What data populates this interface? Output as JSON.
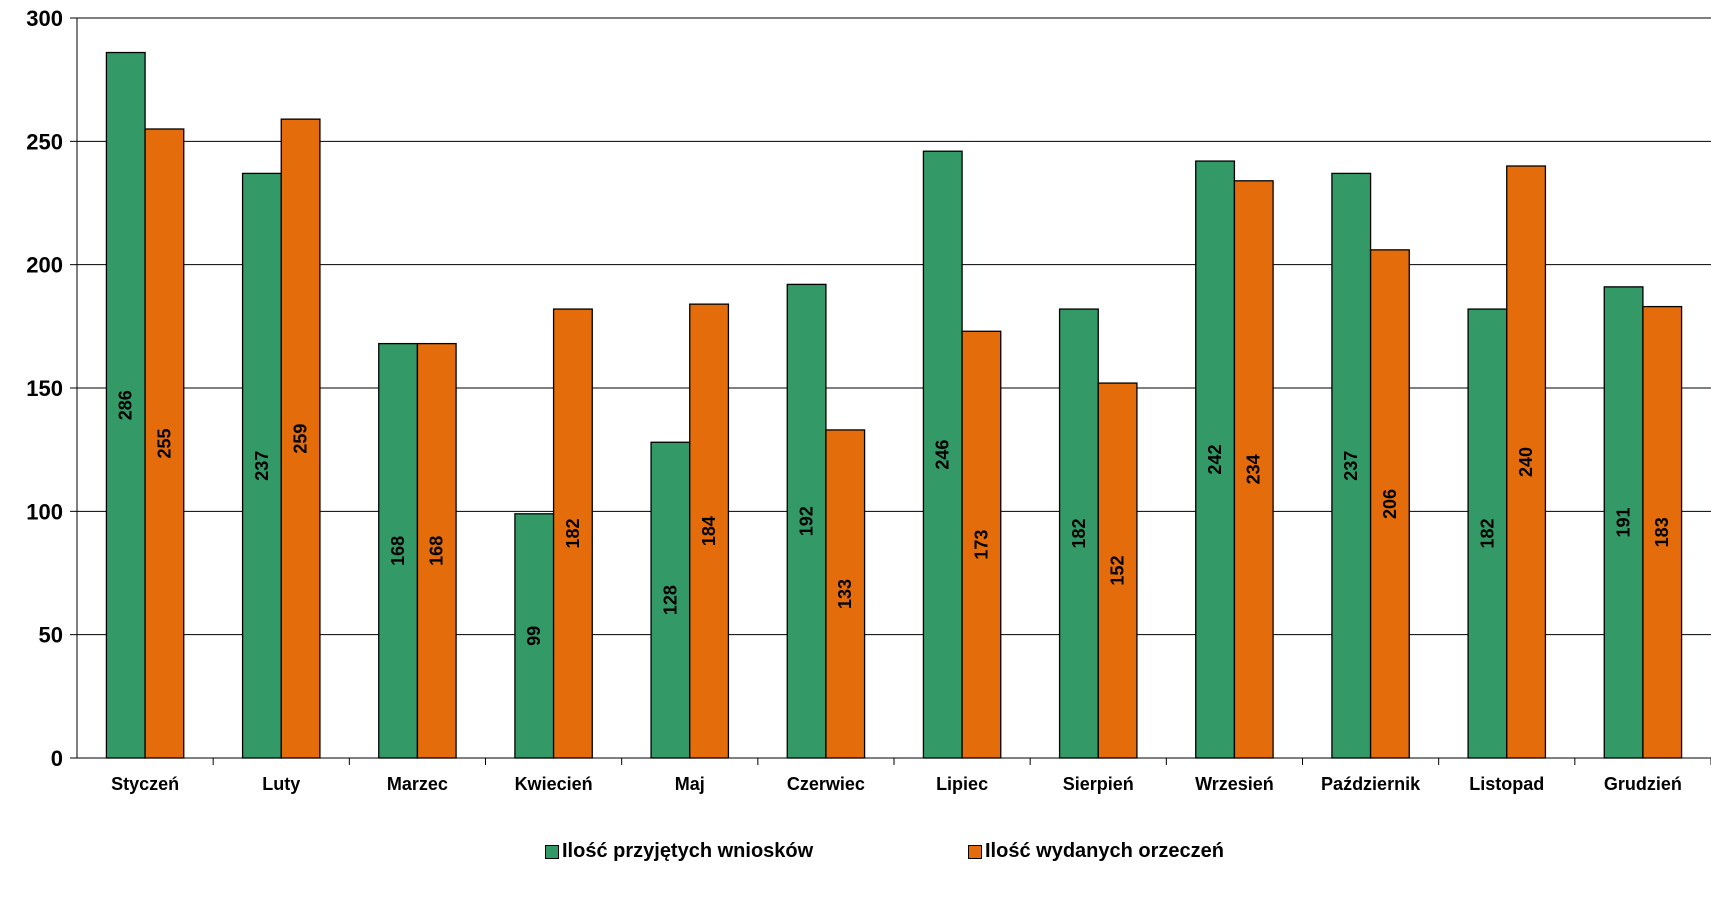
{
  "chart_data": {
    "type": "bar",
    "categories": [
      "Styczeń",
      "Luty",
      "Marzec",
      "Kwiecień",
      "Maj",
      "Czerwiec",
      "Lipiec",
      "Sierpień",
      "Wrzesień",
      "Październik",
      "Listopad",
      "Grudzień"
    ],
    "series": [
      {
        "name": "Ilość przyjętych wniosków",
        "color": "#339966",
        "values": [
          286,
          237,
          168,
          99,
          128,
          192,
          246,
          182,
          242,
          237,
          182,
          191
        ]
      },
      {
        "name": "Ilość wydanych orzeczeń",
        "color": "#e46c0a",
        "values": [
          255,
          259,
          168,
          182,
          184,
          133,
          173,
          152,
          234,
          206,
          240,
          183
        ]
      }
    ],
    "ylim": [
      0,
      300
    ],
    "yticks": [
      "0",
      "50",
      "100",
      "150",
      "200",
      "250",
      "300"
    ],
    "grid": true,
    "legend_position": "bottom",
    "data_labels": "rotated-inside-bars"
  }
}
